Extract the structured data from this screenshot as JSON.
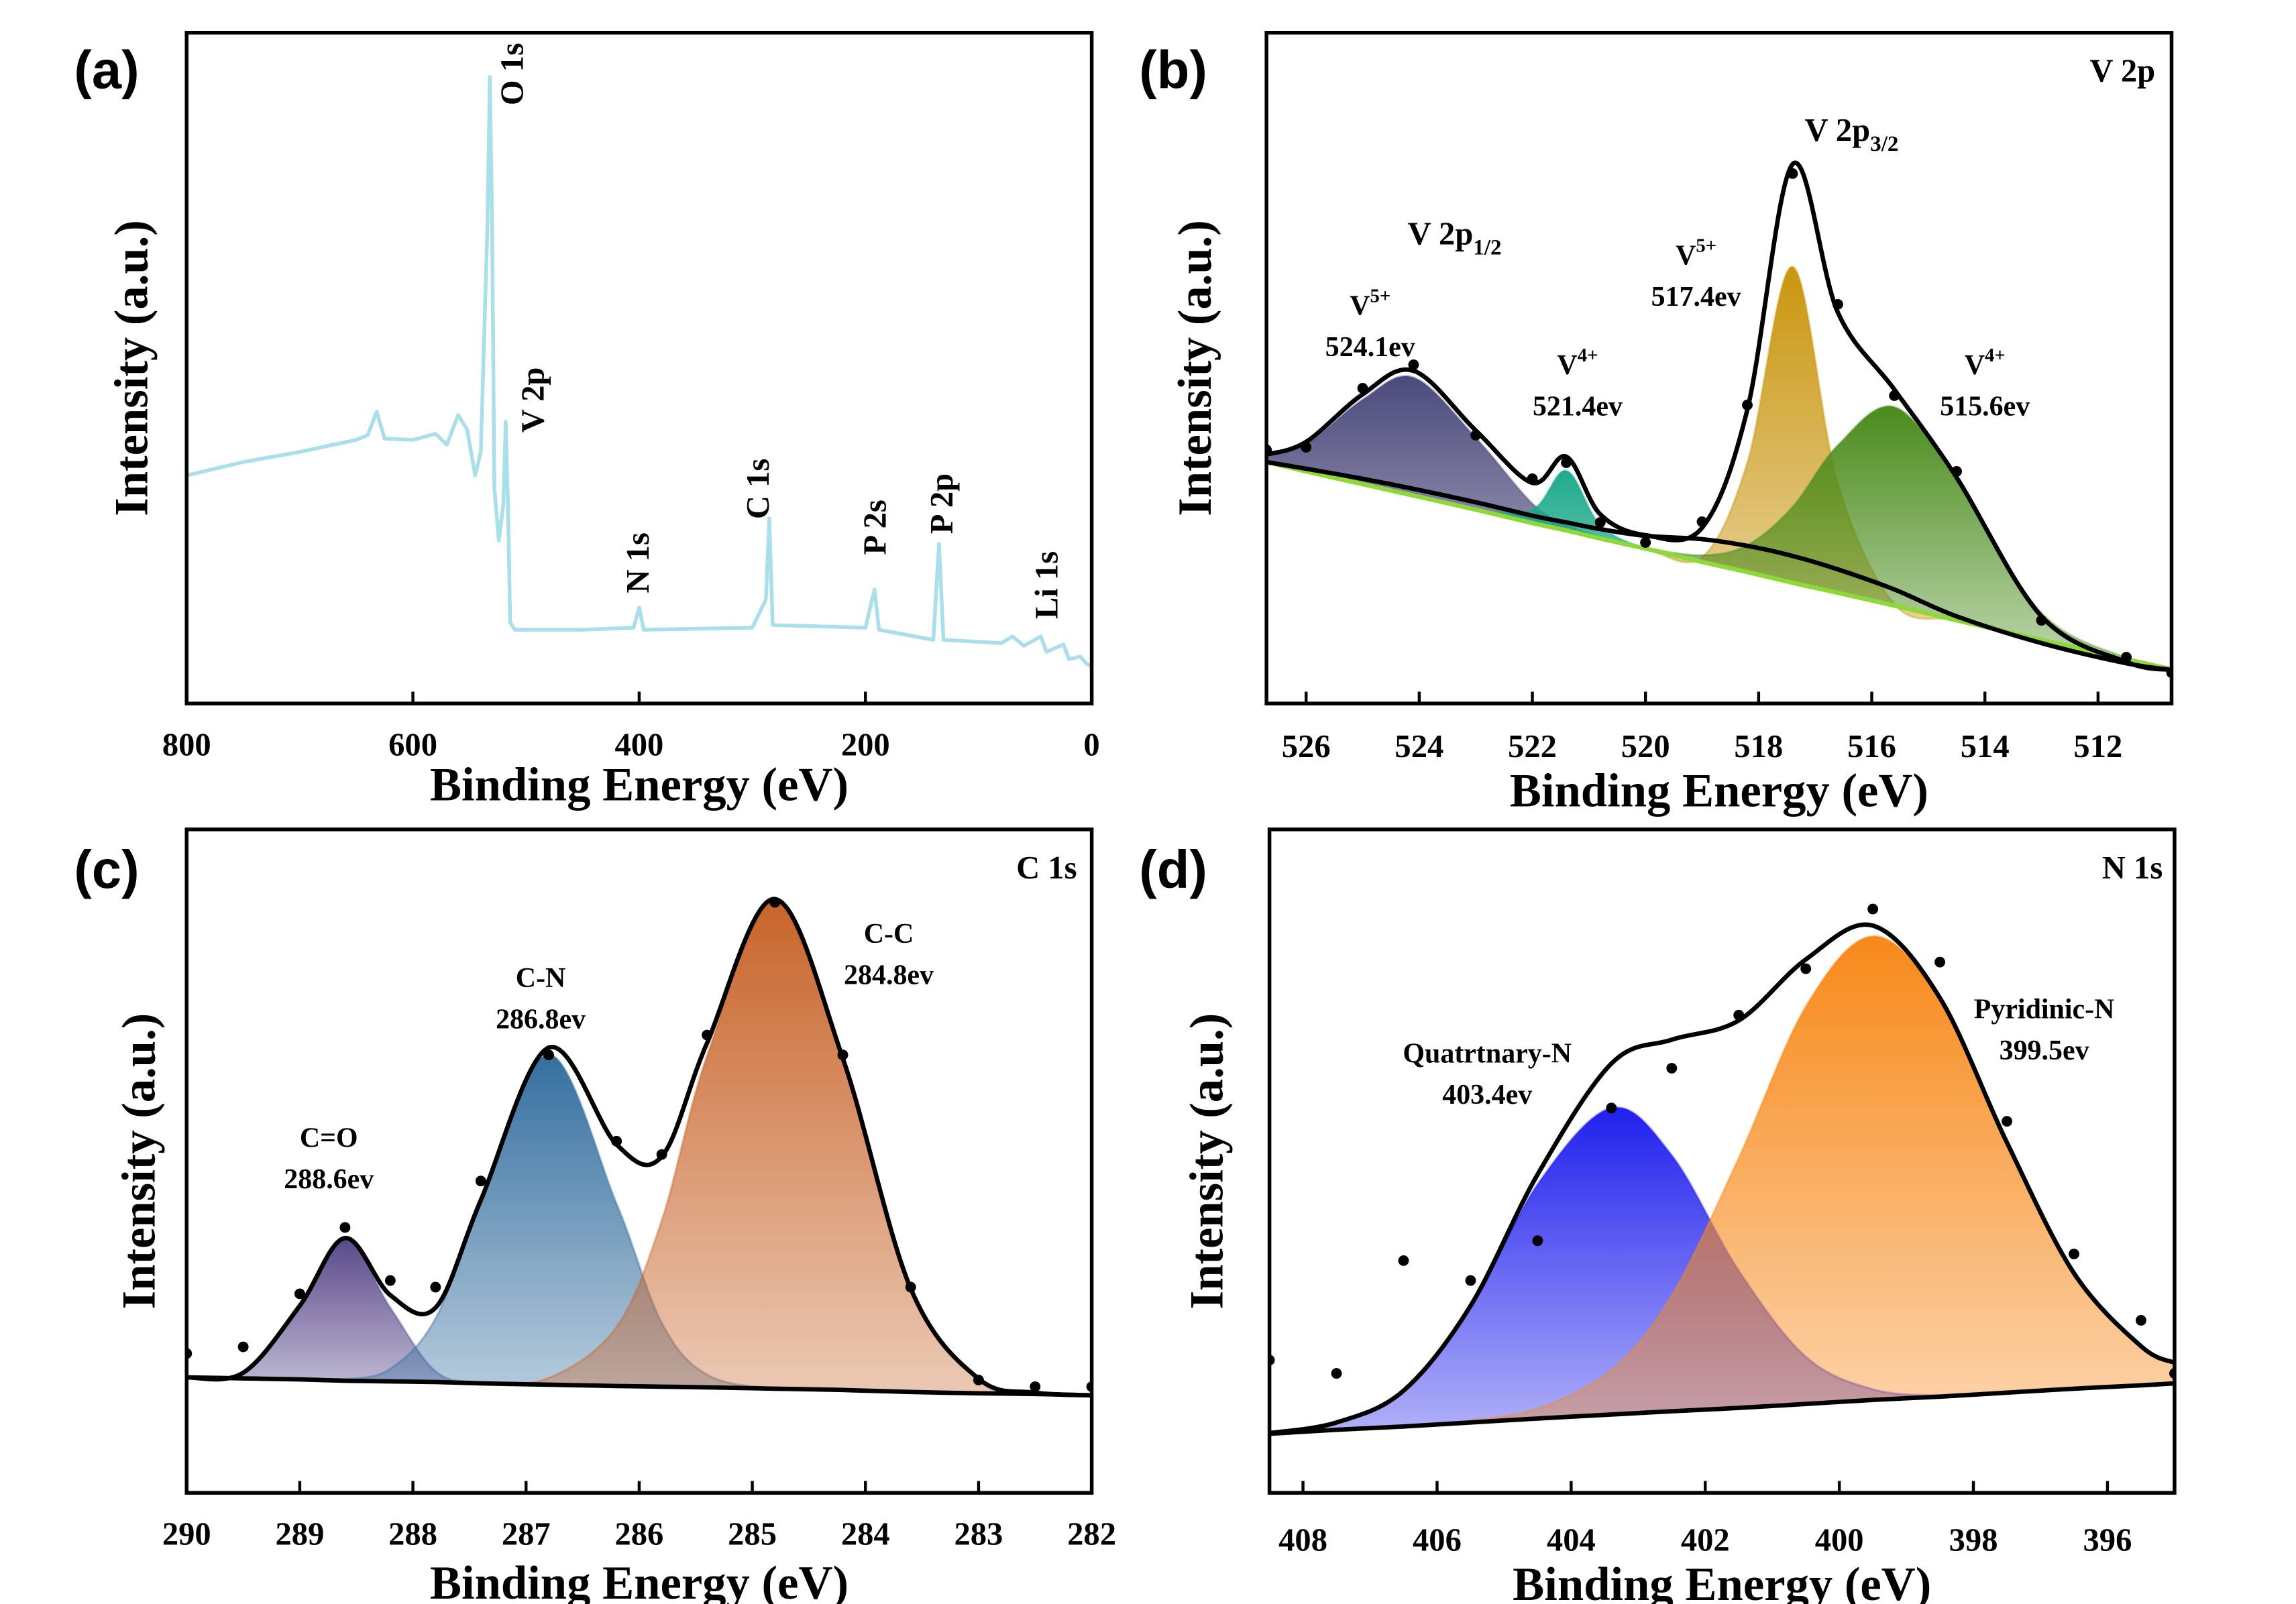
{
  "chart_data": [
    {
      "type": "line",
      "label": "(a)",
      "xlabel": "Binding Energy (eV)",
      "ylabel": "Intensity (a.u.)",
      "xlim": [
        800,
        0
      ],
      "xticks": [
        800,
        600,
        400,
        200,
        0
      ],
      "ylim": [
        0,
        100
      ],
      "x": [
        800,
        750,
        700,
        650,
        640,
        632,
        625,
        600,
        580,
        570,
        560,
        552,
        545,
        540,
        534,
        532,
        530,
        528,
        524,
        520,
        518,
        516,
        514,
        510,
        450,
        405,
        400,
        396,
        300,
        288,
        285,
        282,
        200,
        192,
        188,
        140,
        135,
        131,
        80,
        70,
        60,
        45,
        40,
        25,
        20,
        10,
        5,
        0
      ],
      "series": [
        {
          "style": "line",
          "color": "#a8dfe9",
          "values": [
            34,
            36,
            37.5,
            39.3,
            40,
            43.5,
            39.5,
            39.3,
            40.2,
            38.6,
            43,
            40.8,
            34,
            37.5,
            72,
            93.4,
            72,
            32,
            24.3,
            29.8,
            42,
            29.8,
            12.1,
            11,
            11,
            11.3,
            14.3,
            11,
            11.3,
            15.5,
            27.6,
            11.7,
            11.3,
            17,
            11,
            9.5,
            23.8,
            9.5,
            9,
            10,
            8.6,
            10,
            7.7,
            8.8,
            6.6,
            7,
            6,
            5.5
          ]
        }
      ],
      "annotations": [
        {
          "text": "O 1s"
        },
        {
          "text": "V 2p"
        },
        {
          "text": "N 1s"
        },
        {
          "text": "C 1s"
        },
        {
          "text": "P 2s"
        },
        {
          "text": "P 2p"
        },
        {
          "text": "Li 1s"
        }
      ]
    },
    {
      "type": "area",
      "label": "(b)",
      "title": "V 2p",
      "xlabel": "Binding Energy (eV)",
      "ylabel": "Intensity (a.u.)",
      "xlim": [
        526.7,
        510.7
      ],
      "xticks": [
        526,
        524,
        522,
        520,
        518,
        516,
        514,
        512
      ],
      "ylim": [
        0,
        100
      ],
      "x": [
        526.7,
        526,
        525,
        524.1,
        523,
        522,
        521.4,
        520.8,
        520,
        519,
        518.2,
        517.4,
        516.6,
        515.6,
        514.5,
        513,
        511.5,
        510.7
      ],
      "series": [
        {
          "style": "baseline",
          "color": "#8fd83a",
          "values": [
            36.0,
            34.6,
            32.7,
            31.0,
            28.9,
            26.9,
            25.8,
            24.6,
            23.1,
            21.1,
            19.6,
            18.0,
            16.5,
            14.6,
            12.4,
            9.5,
            6.6,
            5.1
          ]
        },
        {
          "style": "area",
          "color": "#4b4a7c",
          "values": [
            37.1,
            38.6,
            45.3,
            48.6,
            39.6,
            29.8,
            26.7,
            24.8,
            23.1,
            21.1,
            19.6,
            18.0,
            16.5,
            14.6,
            12.4,
            9.5,
            6.6,
            5.1
          ]
        },
        {
          "style": "area",
          "color": "#18a888",
          "values": [
            36.0,
            34.6,
            32.7,
            31.0,
            28.9,
            28.9,
            34.7,
            26.6,
            23.1,
            21.1,
            19.6,
            18.0,
            16.5,
            14.6,
            12.4,
            9.5,
            6.6,
            5.1
          ]
        },
        {
          "style": "area",
          "color": "#c9960f",
          "values": [
            36.0,
            34.6,
            32.7,
            31.0,
            28.9,
            26.9,
            25.8,
            24.6,
            23.1,
            21.8,
            35.9,
            65.1,
            32.8,
            14.8,
            12.4,
            9.5,
            6.6,
            5.1
          ]
        },
        {
          "style": "area",
          "color": "#4a8c1c",
          "values": [
            36.0,
            34.6,
            32.7,
            31.0,
            28.9,
            26.9,
            25.8,
            24.6,
            23.2,
            22.1,
            23.6,
            29.3,
            38.5,
            44.2,
            33.1,
            13.5,
            6.8,
            5.1
          ]
        },
        {
          "style": "line",
          "color": "#000000",
          "values": [
            36.0,
            35.0,
            33.5,
            32.0,
            30.0,
            28.0,
            27.0,
            26.0,
            25.0,
            24.5,
            23.5,
            22.0,
            20.0,
            17.0,
            13.0,
            9.0,
            6.0,
            5.0
          ]
        },
        {
          "style": "line",
          "color": "#000000",
          "values": [
            37.1,
            39.0,
            46.1,
            49.6,
            40.7,
            32.9,
            36.8,
            28.2,
            25.1,
            26.2,
            43.8,
            80.4,
            58.3,
            46.8,
            33.7,
            13.0,
            6.2,
            5.0
          ]
        },
        {
          "style": "scatter",
          "color": "#000000",
          "values": [
            37.8,
            38.2,
            47.0,
            50.5,
            40.0,
            33.5,
            35.9,
            27.0,
            24.0,
            27.1,
            44.5,
            79.0,
            59.5,
            45.9,
            34.6,
            12.4,
            6.9,
            4.6
          ]
        }
      ],
      "annotations": [
        {
          "text": "V 2p",
          "sub": "3/2",
          "color": "#000000"
        },
        {
          "text": "V 2p",
          "sub": "1/2",
          "color": "#000000"
        },
        {
          "text": "V",
          "sup": "5+",
          "value": "524.1ev",
          "color": "#3fd8b0"
        },
        {
          "text": "V",
          "sup": "4+",
          "value": "521.4ev",
          "color": "#9a8fce"
        },
        {
          "text": "V",
          "sup": "5+",
          "value": "517.4ev",
          "color": "#f0c040"
        },
        {
          "text": "V",
          "sup": "4+",
          "value": "515.6ev",
          "color": "#8ce040"
        }
      ]
    },
    {
      "type": "area",
      "label": "(c)",
      "title": "C 1s",
      "xlabel": "Binding Energy (eV)",
      "ylabel": "Intensity (a.u.)",
      "xlim": [
        290,
        282
      ],
      "xticks": [
        290,
        289,
        288,
        287,
        286,
        285,
        284,
        283,
        282
      ],
      "ylim": [
        0,
        100
      ],
      "x": [
        290,
        289.5,
        289,
        288.6,
        288.2,
        287.8,
        287.4,
        286.8,
        286.2,
        285.8,
        285.4,
        284.8,
        284.2,
        283.6,
        283,
        282.5,
        282
      ],
      "series": [
        {
          "style": "baseline",
          "color": "#000000",
          "values": [
            17.4,
            17.25,
            17.1,
            16.9,
            16.8,
            16.7,
            16.5,
            16.3,
            16.1,
            16.0,
            15.9,
            15.7,
            15.5,
            15.2,
            15.0,
            14.9,
            14.7
          ]
        },
        {
          "style": "area",
          "color": "#5a4a8c",
          "values": [
            17.4,
            18.1,
            28.2,
            38.2,
            27.9,
            18.3,
            16.6,
            16.3,
            16.1,
            16.0,
            15.9,
            15.7,
            15.5,
            15.2,
            15.0,
            14.9,
            14.7
          ]
        },
        {
          "style": "area",
          "color": "#356f9f",
          "values": [
            17.4,
            17.25,
            17.1,
            17.1,
            18.7,
            26.3,
            44.0,
            66.1,
            43.6,
            25.6,
            17.8,
            15.7,
            15.5,
            15.2,
            15.0,
            14.9,
            14.7
          ]
        },
        {
          "style": "area",
          "color": "#c8642a",
          "values": [
            17.4,
            17.25,
            17.1,
            16.9,
            16.8,
            16.7,
            16.5,
            17.3,
            25.0,
            41.1,
            65.9,
            89.5,
            65.5,
            30.8,
            17.2,
            15.1,
            14.7
          ]
        },
        {
          "style": "line",
          "color": "#000000",
          "values": [
            17.4,
            18.1,
            28.2,
            38.4,
            29.8,
            27.9,
            44.1,
            67.1,
            52.5,
            50.7,
            67.8,
            89.5,
            65.5,
            30.8,
            17.2,
            15.1,
            14.7
          ]
        },
        {
          "style": "scatter",
          "color": "#000000",
          "values": [
            21,
            22,
            30,
            40,
            32,
            31,
            47,
            66,
            53,
            51,
            69,
            89,
            66,
            31,
            17,
            16,
            16
          ]
        }
      ],
      "annotations": [
        {
          "text": "C=O",
          "value": "288.6ev",
          "color": "#7d6bb0"
        },
        {
          "text": "C-N",
          "value": "286.8ev",
          "color": "#5f9ccf"
        },
        {
          "text": "C-C",
          "value": "284.8ev",
          "color": "#f0a070"
        }
      ]
    },
    {
      "type": "area",
      "label": "(d)",
      "title": "N 1s",
      "xlabel": "Binding Energy (eV)",
      "ylabel": "Intensity (a.u.)",
      "xlim": [
        408.5,
        395
      ],
      "xticks": [
        408,
        406,
        404,
        402,
        400,
        398,
        396
      ],
      "ylim": [
        0,
        100
      ],
      "x": [
        408.5,
        407.5,
        406.5,
        405.5,
        404.5,
        403.4,
        402.5,
        401.5,
        400.5,
        399.5,
        398.5,
        397.5,
        396.5,
        395.5,
        395
      ],
      "series": [
        {
          "style": "baseline",
          "color": "#000000",
          "values": [
            8.9,
            9.5,
            10.0,
            10.6,
            11.2,
            11.8,
            12.3,
            12.8,
            13.4,
            14.0,
            14.5,
            15.1,
            15.7,
            16.2,
            16.5
          ]
        },
        {
          "style": "area",
          "color": "#2020ee",
          "values": [
            9.0,
            10.6,
            15.4,
            27.9,
            46.5,
            58.0,
            50.9,
            33.5,
            20.5,
            15.6,
            14.7,
            15.1,
            15.7,
            16.2,
            16.5
          ]
        },
        {
          "style": "area",
          "color": "#f7891a",
          "values": [
            8.9,
            9.5,
            10.0,
            10.9,
            12.7,
            18.5,
            29.7,
            50.5,
            73.3,
            83.9,
            74.4,
            52.8,
            33.1,
            22.1,
            19.6
          ]
        },
        {
          "style": "line",
          "color": "#000000",
          "values": [
            9.0,
            10.6,
            15.4,
            28.2,
            48.0,
            64.7,
            68.3,
            71.2,
            80.4,
            85.5,
            74.6,
            52.8,
            33.1,
            22.1,
            19.6
          ]
        },
        {
          "style": "scatter",
          "color": "#000000",
          "values": [
            20,
            18,
            35,
            32,
            38,
            58,
            64,
            72,
            79,
            88,
            80,
            56,
            36,
            26,
            18
          ]
        }
      ],
      "annotations": [
        {
          "text": "Quatrtnary-N",
          "value": "403.4ev",
          "color": "#b0b0f0"
        },
        {
          "text": "Pyridinic-N",
          "value": "399.5ev",
          "color": "#f5c08a"
        }
      ]
    }
  ]
}
